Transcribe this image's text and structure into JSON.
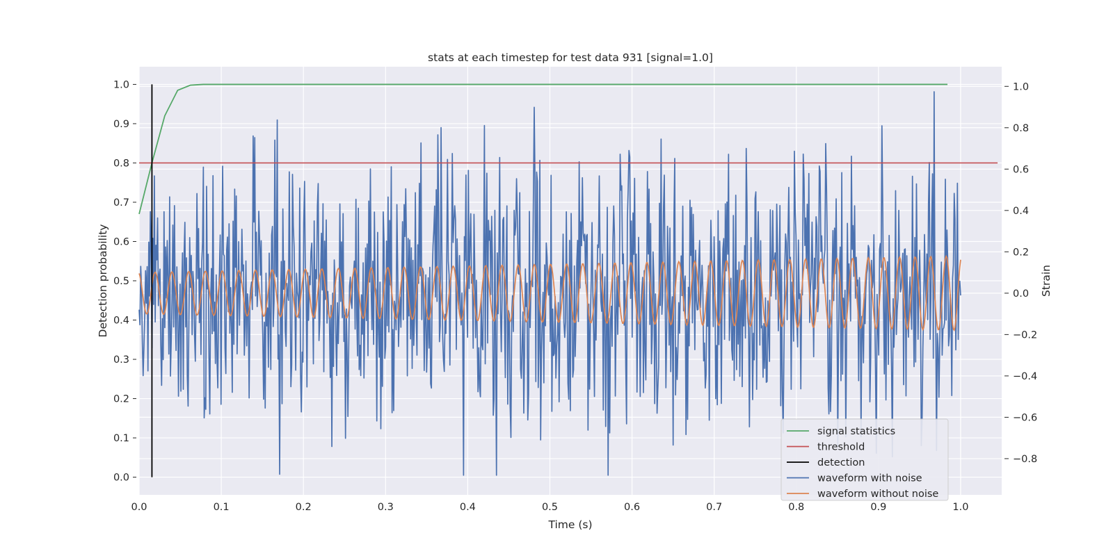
{
  "chart_data": {
    "type": "line",
    "title": "stats at each timestep for test data 931 [signal=1.0]",
    "xlabel": "Time (s)",
    "ylabel_left": "Detection probability",
    "ylabel_right": "Strain",
    "xlim": [
      0.0,
      1.05
    ],
    "ylim_left": [
      -0.045,
      1.045
    ],
    "ylim_right": [
      -0.975,
      1.095
    ],
    "x_ticks": [
      "0.0",
      "0.1",
      "0.2",
      "0.3",
      "0.4",
      "0.5",
      "0.6",
      "0.7",
      "0.8",
      "0.9",
      "1.0"
    ],
    "y_ticks_left": [
      "0.0",
      "0.1",
      "0.2",
      "0.3",
      "0.4",
      "0.5",
      "0.6",
      "0.7",
      "0.8",
      "0.9",
      "1.0"
    ],
    "y_ticks_right": [
      "−0.8",
      "−0.6",
      "−0.4",
      "−0.2",
      "0.0",
      "0.2",
      "0.4",
      "0.6",
      "0.8",
      "1.0"
    ],
    "grid": true,
    "legend_position": "bottom-right",
    "colors": {
      "plot_bg": "#eaeaf2",
      "grid": "#ffffff",
      "signal_statistics": "#55a868",
      "threshold": "#c44e52",
      "detection": "#000000",
      "waveform_with_noise": "#4c72b0",
      "waveform_without_noise": "#dd8452"
    },
    "series": [
      {
        "name": "signal statistics",
        "axis": "left",
        "x": [
          0.0,
          0.0156,
          0.0312,
          0.0469,
          0.0625,
          0.0781,
          0.2,
          0.4,
          0.6,
          0.8,
          0.984
        ],
        "y": [
          0.67,
          0.8,
          0.92,
          0.985,
          0.998,
          1.0,
          1.0,
          1.0,
          1.0,
          1.0,
          1.0
        ]
      },
      {
        "name": "threshold",
        "axis": "left",
        "x": [
          0.0,
          1.045
        ],
        "y": [
          0.8,
          0.8
        ]
      },
      {
        "name": "detection",
        "axis": "left",
        "x": [
          0.0156,
          0.0156
        ],
        "y": [
          0.0,
          1.0
        ]
      },
      {
        "name": "waveform with noise",
        "axis": "right",
        "x_range": [
          0.0,
          1.0
        ],
        "n_points": 1024,
        "noise_std": 0.3,
        "y_min": -0.88,
        "y_max": 0.99
      },
      {
        "name": "waveform without noise",
        "axis": "right",
        "x_range": [
          0.0,
          1.0
        ],
        "n_points": 1024,
        "cycles": 53,
        "amplitude_start": 0.1,
        "amplitude_end": 0.18
      }
    ],
    "legend": [
      "signal statistics",
      "threshold",
      "detection",
      "waveform with noise",
      "waveform without noise"
    ]
  }
}
